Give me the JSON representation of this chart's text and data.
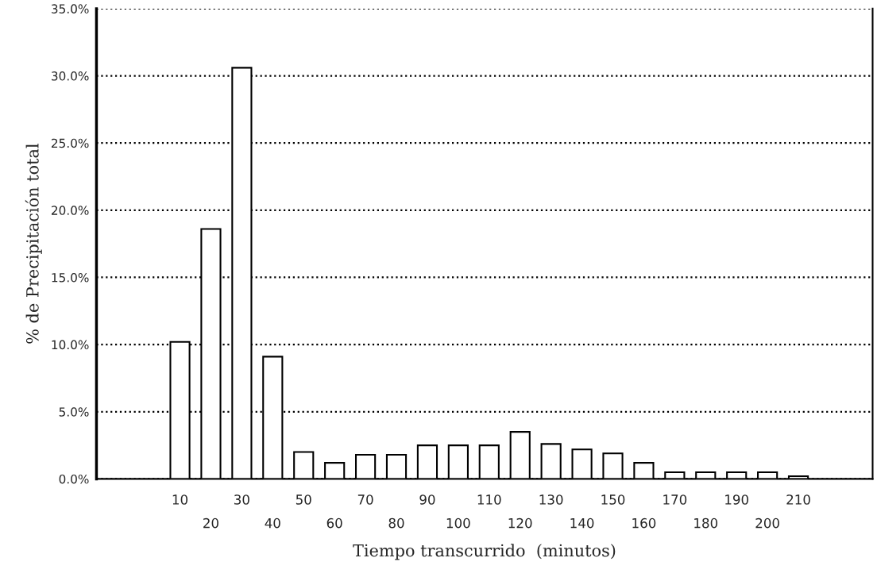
{
  "chart_data": {
    "type": "bar",
    "xlabel": "Tiempo transcurrido  (minutos)",
    "ylabel": "% de Precipitación total",
    "categories": [
      "10",
      "20",
      "30",
      "40",
      "50",
      "60",
      "70",
      "80",
      "90",
      "100",
      "110",
      "120",
      "130",
      "140",
      "150",
      "160",
      "170",
      "180",
      "190",
      "200",
      "210"
    ],
    "values": [
      10.2,
      18.6,
      30.6,
      9.1,
      2.0,
      1.2,
      1.8,
      1.8,
      2.5,
      2.5,
      2.5,
      3.5,
      2.6,
      2.2,
      1.9,
      1.2,
      0.5,
      0.5,
      0.5,
      0.5,
      0.2
    ],
    "color": "#ffffff",
    "ylim": [
      0,
      35
    ],
    "yticks": [
      {
        "value": 0,
        "label": "0.0%"
      },
      {
        "value": 5,
        "label": "5.0%"
      },
      {
        "value": 10,
        "label": "10.0%"
      },
      {
        "value": 15,
        "label": "15.0%"
      },
      {
        "value": 20,
        "label": "20.0%"
      },
      {
        "value": 25,
        "label": "25.0%"
      },
      {
        "value": 30,
        "label": "30.0%"
      },
      {
        "value": 35,
        "label": "35.0%"
      }
    ],
    "grid": "y"
  }
}
